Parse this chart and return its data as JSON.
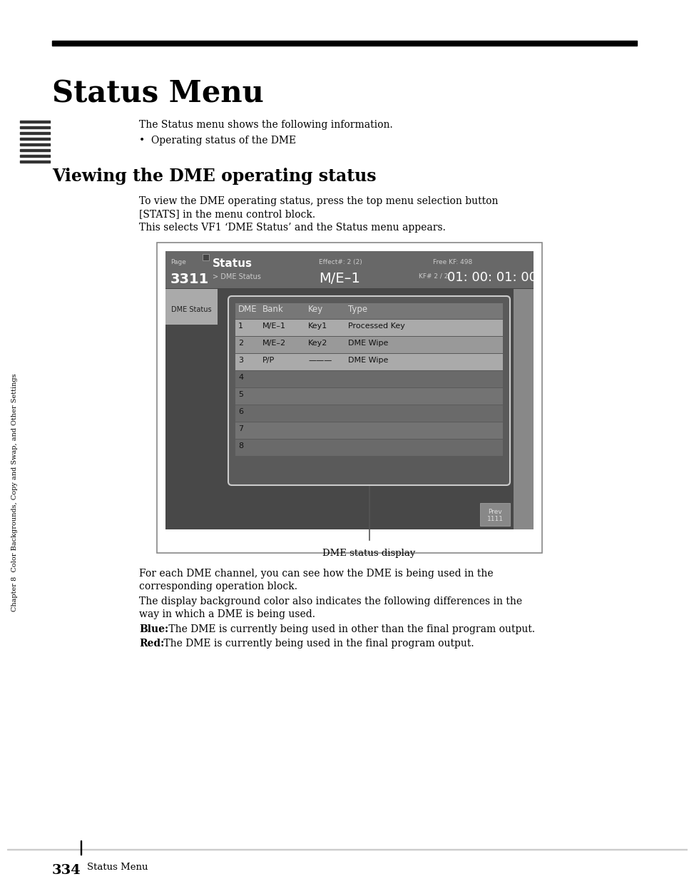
{
  "title": "Status Menu",
  "section_title": "Viewing the DME operating status",
  "page_number": "334",
  "footer_text": "Status Menu",
  "body_text1": "The Status menu shows the following information.",
  "body_bullet": "•  Operating status of the DME",
  "section_body1a": "To view the DME operating status, press the top menu selection button",
  "section_body1b": "[STATS] in the menu control block.",
  "section_body2": "This selects VF1 ‘DME Status’ and the Status menu appears.",
  "sidebar_text": "Chapter 8  Color Backgrounds, Copy and Swap, and Other Settings",
  "screen_header_left": "Page",
  "screen_page": "3311",
  "screen_title": "Status",
  "screen_submenu": "> DME Status",
  "screen_effect_label": "Effect#: 2 (2)",
  "screen_effect_value": "M/E–1",
  "screen_kf_label": "Free KF: 498",
  "screen_kf_sub": "KF# 2 / 2",
  "screen_kf_time": "01: 00: 01: 00",
  "screen_tab": "DME Status",
  "table_headers": [
    "DME",
    "Bank",
    "Key",
    "Type"
  ],
  "table_rows": [
    [
      "1",
      "M/E–1",
      "Key1",
      "Processed Key"
    ],
    [
      "2",
      "M/E–2",
      "Key2",
      "DME Wipe"
    ],
    [
      "3",
      "P/P",
      "———",
      "DME Wipe"
    ],
    [
      "4",
      "",
      "",
      ""
    ],
    [
      "5",
      "",
      "",
      ""
    ],
    [
      "6",
      "",
      "",
      ""
    ],
    [
      "7",
      "",
      "",
      ""
    ],
    [
      "8",
      "",
      "",
      ""
    ]
  ],
  "callout_text": "DME status display",
  "footer_bottom_text1a": "For each DME channel, you can see how the DME is being used in the",
  "footer_bottom_text1b": "corresponding operation block.",
  "footer_bottom_text2a": "The display background color also indicates the following differences in the",
  "footer_bottom_text2b": "way in which a DME is being used.",
  "footer_blue_label": "Blue:",
  "footer_blue_text": " The DME is currently being used in other than the final program output.",
  "footer_red_label": "Red:",
  "footer_red_text": " The DME is currently being used in the final program output.",
  "bg_color": "#ffffff"
}
